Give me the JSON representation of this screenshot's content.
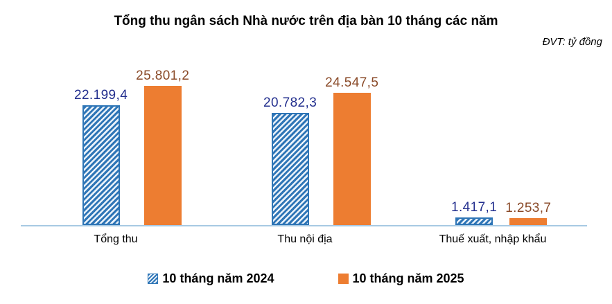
{
  "title": "Tổng thu ngân sách Nhà nước trên địa bàn 10 tháng các năm",
  "unit_note": "ĐVT: tỷ đồng",
  "chart_data": {
    "type": "bar",
    "title": "Tổng thu ngân sách Nhà nước trên địa bàn 10 tháng các năm",
    "unit": "ĐVT: tỷ đồng",
    "categories": [
      "Tổng thu",
      "Thu nội địa",
      "Thuế xuất, nhập khẩu"
    ],
    "series": [
      {
        "name": "10 tháng năm 2024",
        "values": [
          22199.4,
          20782.3,
          1417.1
        ],
        "labels": [
          "22.199,4",
          "20.782,3",
          "1.417,1"
        ],
        "color": "#2E75B6",
        "fill_pattern": "diagonal-hatch",
        "label_color": "#232F8E"
      },
      {
        "name": "10 tháng năm 2025",
        "values": [
          25801.2,
          24547.5,
          1253.7
        ],
        "labels": [
          "25.801,2",
          "24.547,5",
          "1.253,7"
        ],
        "color": "#ED7D31",
        "fill_pattern": "solid",
        "label_color": "#8A4A28"
      }
    ],
    "ylim": [
      0,
      28000
    ],
    "grid": false,
    "y_axis_visible": false,
    "legend_position": "bottom",
    "axis_line_color": "#A7C9E3"
  }
}
